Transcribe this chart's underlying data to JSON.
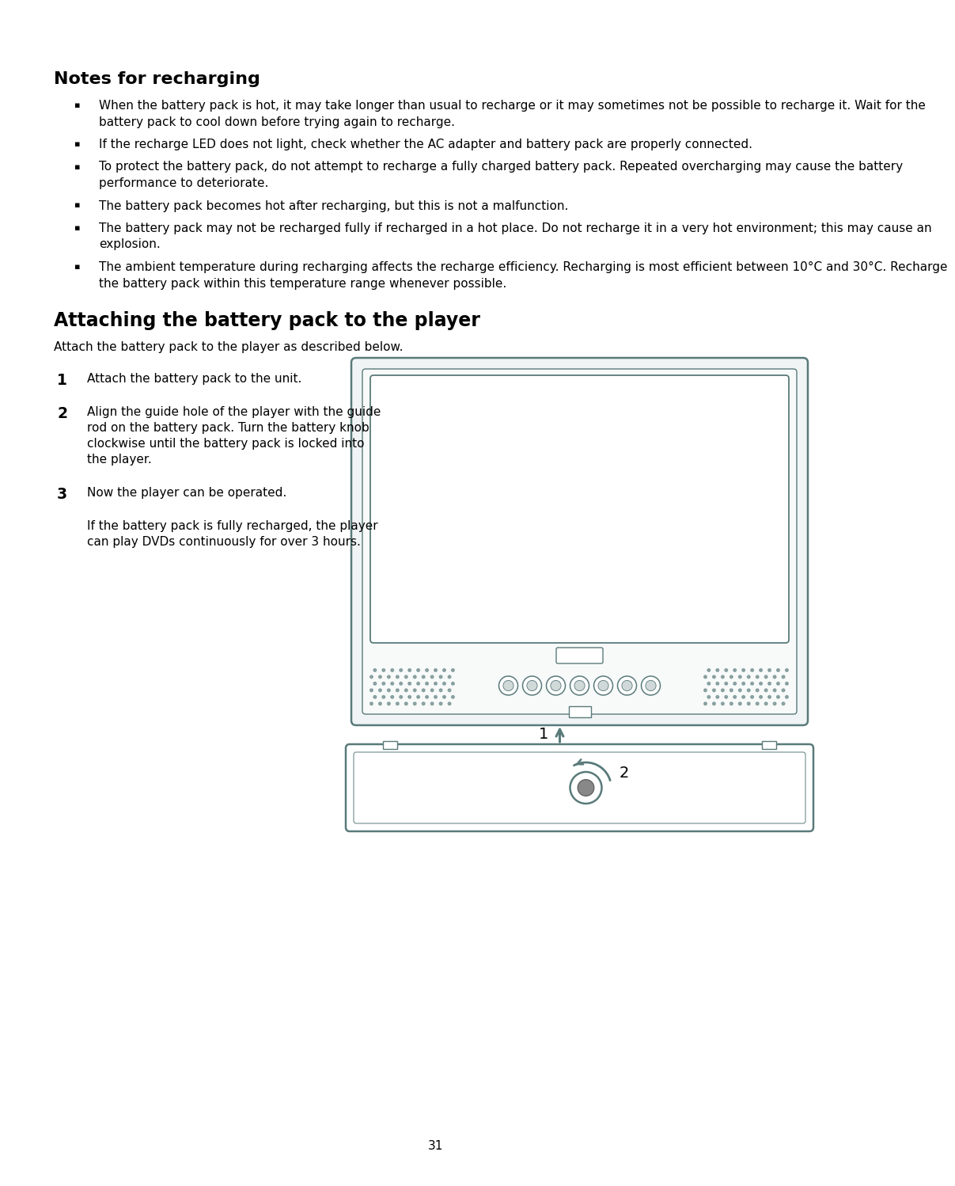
{
  "title_notes": "Notes for recharging",
  "title_attaching": "Attaching the battery pack to the player",
  "subtitle_attaching": "Attach the battery pack to the player as described below.",
  "bullets": [
    "When the battery pack is hot, it may take longer than usual to recharge or it may sometimes not be possible to recharge it. Wait for the battery pack to cool down before trying again to recharge.",
    "If the recharge LED does not light, check whether the AC adapter and battery pack are properly connected.",
    "To protect the battery pack, do not attempt to recharge a fully charged battery pack. Repeated overcharging may cause the battery performance to deteriorate.",
    "The battery pack becomes hot after recharging, but this is not a malfunction.",
    "The battery pack may not be recharged fully if recharged in a hot place. Do not recharge it in a very hot environment; this may cause an explosion.",
    "The ambient temperature during recharging affects the recharge efficiency. Recharging is most efficient between 10°C and 30°C. Recharge the battery pack within this temperature range whenever possible."
  ],
  "steps": [
    {
      "num": "1",
      "text": "Attach the battery pack to the unit."
    },
    {
      "num": "2",
      "text": "Align the guide hole of the player with the guide rod on the battery pack. Turn the battery knob clockwise until the battery pack is locked into the player."
    },
    {
      "num": "3",
      "text_main": "Now the player can be operated.",
      "text_sub": "If the battery pack is fully recharged, the player can play DVDs continuously for over 3 hours."
    }
  ],
  "page_number": "31",
  "bg_color": "#ffffff",
  "text_color": "#000000",
  "diagram_color": "#5a7a7a"
}
